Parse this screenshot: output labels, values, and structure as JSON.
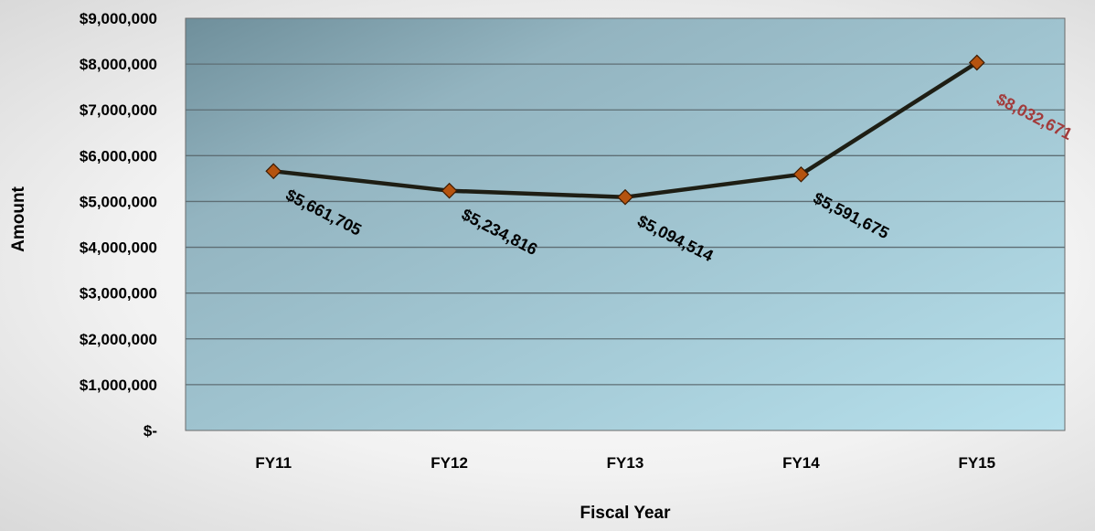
{
  "chart_data": {
    "type": "line",
    "title": "",
    "xlabel": "Fiscal Year",
    "ylabel": "Amount",
    "categories": [
      "FY11",
      "FY12",
      "FY13",
      "FY14",
      "FY15"
    ],
    "series": [
      {
        "values": [
          5661705,
          5234816,
          5094514,
          5591675,
          8032671
        ]
      }
    ],
    "data_labels": [
      "$5,661,705",
      "$5,234,816",
      "$5,094,514",
      "$5,591,675",
      "$8,032,671"
    ],
    "ylim": [
      0,
      9000000
    ],
    "y_ticks": [
      {
        "value": 9000000,
        "label": "$9,000,000"
      },
      {
        "value": 8000000,
        "label": "$8,000,000"
      },
      {
        "value": 7000000,
        "label": "$7,000,000"
      },
      {
        "value": 6000000,
        "label": "$6,000,000"
      },
      {
        "value": 5000000,
        "label": "$5,000,000"
      },
      {
        "value": 4000000,
        "label": "$4,000,000"
      },
      {
        "value": 3000000,
        "label": "$3,000,000"
      },
      {
        "value": 2000000,
        "label": "$2,000,000"
      },
      {
        "value": 1000000,
        "label": "$1,000,000"
      },
      {
        "value": 0,
        "label": "$-"
      }
    ],
    "grid": true,
    "colors": {
      "line": "#1e1e14",
      "marker_fill": "#b5530f",
      "marker_stroke": "#3d1a00",
      "label_default": "#000000",
      "label_highlight": "#a23b3b",
      "gridline": "#5e6e74"
    }
  }
}
